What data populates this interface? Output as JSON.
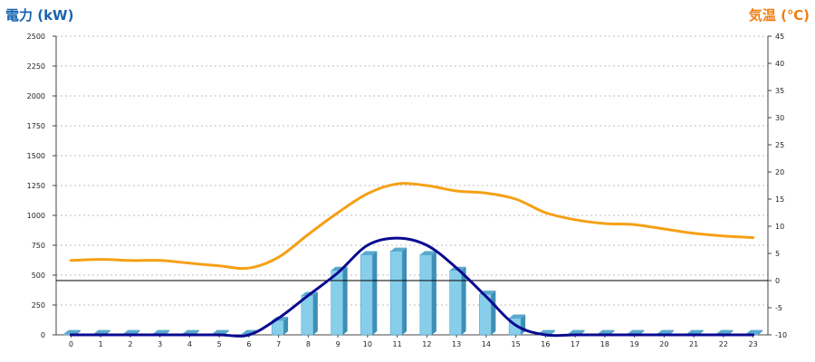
{
  "chart_data": {
    "type": "bar",
    "left_axis_title": "電力 (kW)",
    "right_axis_title": "気温 (℃)",
    "categories": [
      "0",
      "1",
      "2",
      "3",
      "4",
      "5",
      "6",
      "7",
      "8",
      "9",
      "10",
      "11",
      "12",
      "13",
      "14",
      "15",
      "16",
      "17",
      "18",
      "19",
      "20",
      "21",
      "22",
      "23"
    ],
    "y_left": {
      "min": 0,
      "max": 2500,
      "ticks": [
        "0",
        "250",
        "500",
        "750",
        "1000",
        "1250",
        "1500",
        "1750",
        "2000",
        "2250",
        "2500"
      ]
    },
    "y_right": {
      "min": -10,
      "max": 45,
      "ticks": [
        "-10",
        "-5",
        "0",
        "5",
        "10",
        "15",
        "20",
        "25",
        "30",
        "35",
        "40",
        "45"
      ]
    },
    "series": [
      {
        "kind": "bar3d",
        "axis": "left",
        "color": "#87ceeb",
        "values": [
          10,
          10,
          10,
          10,
          10,
          10,
          10,
          120,
          330,
          540,
          670,
          700,
          670,
          540,
          340,
          140,
          10,
          10,
          10,
          10,
          10,
          10,
          10,
          10
        ]
      },
      {
        "kind": "line",
        "axis": "left",
        "color": "#0a0a8f",
        "values": [
          0,
          0,
          0,
          0,
          0,
          0,
          0,
          140,
          330,
          520,
          750,
          810,
          750,
          560,
          320,
          80,
          0,
          0,
          0,
          0,
          0,
          0,
          0,
          0
        ]
      },
      {
        "kind": "line",
        "axis": "right",
        "color": "#f5a015",
        "values": [
          3.7,
          3.9,
          3.7,
          3.7,
          3.2,
          2.7,
          2.3,
          4.3,
          8.5,
          12.5,
          16,
          17.8,
          17.5,
          16.5,
          16.1,
          15,
          12.5,
          11.2,
          10.5,
          10.3,
          9.5,
          8.7,
          8.2,
          7.9
        ]
      }
    ],
    "reference_line": {
      "axis": "right",
      "value": 0,
      "color": "#000000"
    },
    "grid": "horizontal-dotted"
  }
}
